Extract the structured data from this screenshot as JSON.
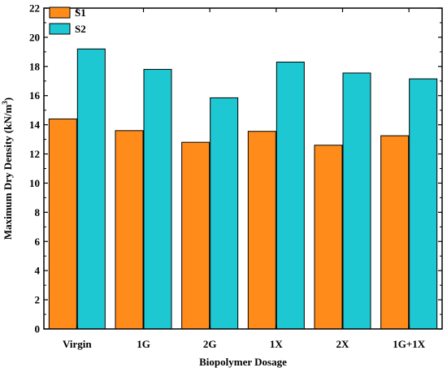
{
  "chart_data": {
    "type": "bar",
    "categories": [
      "Virgin",
      "1G",
      "2G",
      "1X",
      "2X",
      "1G+1X"
    ],
    "series": [
      {
        "name": "S1",
        "values": [
          14.4,
          13.6,
          12.8,
          13.55,
          12.6,
          13.25
        ],
        "color": "#ff8c1a"
      },
      {
        "name": "S2",
        "values": [
          19.2,
          17.8,
          15.85,
          18.3,
          17.55,
          17.15
        ],
        "color": "#1ec8d2"
      }
    ],
    "xlabel": "Biopolymer Dosage",
    "ylabel_main": "Maximum Dry Density (kN/m",
    "ylabel_sup": "3",
    "ylabel_end": ")",
    "ylim": [
      0,
      22
    ],
    "yticks": [
      "0",
      "2",
      "4",
      "6",
      "8",
      "10",
      "12",
      "14",
      "16",
      "18",
      "20",
      "22"
    ],
    "legend_position": "top-left",
    "grid": false
  }
}
